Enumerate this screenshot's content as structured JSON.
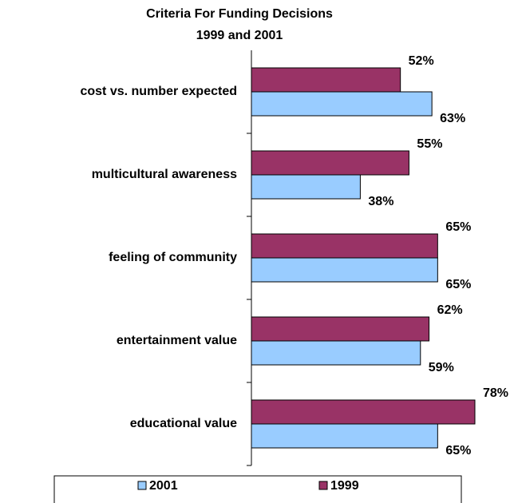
{
  "chart_data": {
    "type": "bar",
    "orientation": "horizontal",
    "title": [
      "Criteria For Funding Decisions",
      "1999 and 2001"
    ],
    "categories": [
      "cost vs. number expected",
      "multicultural awareness",
      "feeling of community",
      "entertainment value",
      "educational value"
    ],
    "series": [
      {
        "name": "1999",
        "color": "#993366",
        "values": [
          52,
          55,
          65,
          62,
          78
        ],
        "value_labels": [
          "52%",
          "55%",
          "65%",
          "62%",
          "78%"
        ]
      },
      {
        "name": "2001",
        "color": "#99ccff",
        "values": [
          63,
          38,
          65,
          59,
          65
        ],
        "value_labels": [
          "63%",
          "38%",
          "65%",
          "59%",
          "65%"
        ]
      }
    ],
    "xlim": [
      0,
      78
    ],
    "legend": "bottom"
  }
}
